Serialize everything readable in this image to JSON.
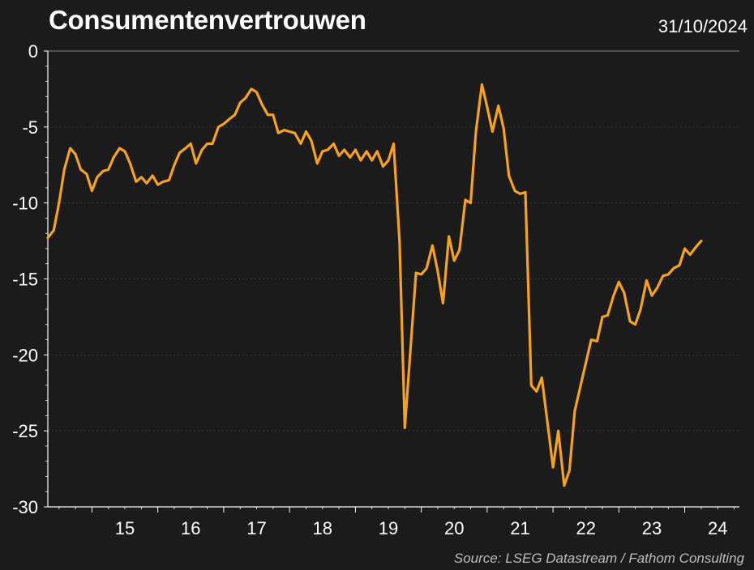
{
  "header": {
    "title": "Consumentenvertrouwen",
    "date": "31/10/2024"
  },
  "footer": {
    "source": "Source: LSEG Datastream / Fathom Consulting"
  },
  "colors": {
    "background": "#1b1b1b",
    "line": "#f7a21c",
    "text": "#ffffff",
    "gridline": "#3a3a3a"
  },
  "chart_data": {
    "type": "line",
    "title": "Consumentenvertrouwen",
    "xlabel": "",
    "ylabel": "",
    "ylim": [
      -30,
      0
    ],
    "xlim": [
      2014.33,
      2024.83
    ],
    "grid": true,
    "legend": "none",
    "yticks": [
      0,
      -5,
      -10,
      -15,
      -20,
      -25,
      -30
    ],
    "xtick_labels": [
      "15",
      "16",
      "17",
      "18",
      "19",
      "20",
      "21",
      "22",
      "23",
      "24"
    ],
    "xtick_values": [
      2015.5,
      2016.5,
      2017.5,
      2018.5,
      2019.5,
      2020.5,
      2021.5,
      2022.5,
      2023.5,
      2024.5
    ],
    "series": [
      {
        "values": [
          [
            2014.33,
            -12.3
          ],
          [
            2014.42,
            -11.8
          ],
          [
            2014.5,
            -10.0
          ],
          [
            2014.58,
            -7.8
          ],
          [
            2014.67,
            -6.4
          ],
          [
            2014.75,
            -6.8
          ],
          [
            2014.83,
            -7.8
          ],
          [
            2014.92,
            -8.1
          ],
          [
            2015.0,
            -9.2
          ],
          [
            2015.08,
            -8.3
          ],
          [
            2015.17,
            -7.9
          ],
          [
            2015.25,
            -7.8
          ],
          [
            2015.33,
            -7.0
          ],
          [
            2015.42,
            -6.4
          ],
          [
            2015.5,
            -6.6
          ],
          [
            2015.58,
            -7.4
          ],
          [
            2015.67,
            -8.6
          ],
          [
            2015.75,
            -8.3
          ],
          [
            2015.83,
            -8.7
          ],
          [
            2015.92,
            -8.2
          ],
          [
            2016.0,
            -8.8
          ],
          [
            2016.08,
            -8.6
          ],
          [
            2016.17,
            -8.5
          ],
          [
            2016.25,
            -7.5
          ],
          [
            2016.33,
            -6.7
          ],
          [
            2016.42,
            -6.4
          ],
          [
            2016.5,
            -6.1
          ],
          [
            2016.58,
            -7.4
          ],
          [
            2016.67,
            -6.5
          ],
          [
            2016.75,
            -6.1
          ],
          [
            2016.83,
            -6.1
          ],
          [
            2016.92,
            -5.0
          ],
          [
            2017.0,
            -4.8
          ],
          [
            2017.08,
            -4.5
          ],
          [
            2017.17,
            -4.2
          ],
          [
            2017.25,
            -3.4
          ],
          [
            2017.33,
            -3.1
          ],
          [
            2017.42,
            -2.5
          ],
          [
            2017.5,
            -2.7
          ],
          [
            2017.58,
            -3.5
          ],
          [
            2017.67,
            -4.2
          ],
          [
            2017.75,
            -4.2
          ],
          [
            2017.83,
            -5.4
          ],
          [
            2017.92,
            -5.2
          ],
          [
            2018.0,
            -5.3
          ],
          [
            2018.08,
            -5.4
          ],
          [
            2018.17,
            -6.1
          ],
          [
            2018.25,
            -5.3
          ],
          [
            2018.33,
            -5.9
          ],
          [
            2018.42,
            -7.4
          ],
          [
            2018.5,
            -6.6
          ],
          [
            2018.58,
            -6.5
          ],
          [
            2018.67,
            -6.1
          ],
          [
            2018.75,
            -6.9
          ],
          [
            2018.83,
            -6.5
          ],
          [
            2018.92,
            -7.0
          ],
          [
            2019.0,
            -6.5
          ],
          [
            2019.08,
            -7.2
          ],
          [
            2019.17,
            -6.6
          ],
          [
            2019.25,
            -7.2
          ],
          [
            2019.33,
            -6.6
          ],
          [
            2019.42,
            -7.6
          ],
          [
            2019.5,
            -7.2
          ],
          [
            2019.58,
            -6.1
          ],
          [
            2019.67,
            -12.5
          ],
          [
            2019.75,
            -24.8
          ],
          [
            2019.83,
            -20.0
          ],
          [
            2019.92,
            -14.6
          ],
          [
            2020.0,
            -14.7
          ],
          [
            2020.08,
            -14.3
          ],
          [
            2020.17,
            -12.8
          ],
          [
            2020.25,
            -14.5
          ],
          [
            2020.33,
            -16.6
          ],
          [
            2020.42,
            -12.2
          ],
          [
            2020.5,
            -13.8
          ],
          [
            2020.58,
            -13.1
          ],
          [
            2020.67,
            -9.8
          ],
          [
            2020.75,
            -10.0
          ],
          [
            2020.83,
            -5.3
          ],
          [
            2020.92,
            -2.2
          ],
          [
            2021.0,
            -3.7
          ],
          [
            2021.08,
            -5.3
          ],
          [
            2021.17,
            -3.6
          ],
          [
            2021.25,
            -5.1
          ],
          [
            2021.33,
            -8.2
          ],
          [
            2021.42,
            -9.2
          ],
          [
            2021.5,
            -9.4
          ],
          [
            2021.58,
            -9.3
          ],
          [
            2021.67,
            -22.0
          ],
          [
            2021.75,
            -22.4
          ],
          [
            2021.83,
            -21.5
          ],
          [
            2021.92,
            -24.6
          ],
          [
            2022.0,
            -27.4
          ],
          [
            2022.08,
            -25.0
          ],
          [
            2022.17,
            -28.6
          ],
          [
            2022.25,
            -27.6
          ],
          [
            2022.33,
            -23.7
          ],
          [
            2022.42,
            -22.0
          ],
          [
            2022.5,
            -20.5
          ],
          [
            2022.58,
            -19.0
          ],
          [
            2022.67,
            -19.1
          ],
          [
            2022.75,
            -17.5
          ],
          [
            2022.83,
            -17.4
          ],
          [
            2022.92,
            -16.1
          ],
          [
            2023.0,
            -15.2
          ],
          [
            2023.08,
            -15.9
          ],
          [
            2023.17,
            -17.8
          ],
          [
            2023.25,
            -18.0
          ],
          [
            2023.33,
            -17.0
          ],
          [
            2023.42,
            -15.1
          ],
          [
            2023.5,
            -16.1
          ],
          [
            2023.58,
            -15.6
          ],
          [
            2023.67,
            -14.8
          ],
          [
            2023.75,
            -14.7
          ],
          [
            2023.83,
            -14.3
          ],
          [
            2023.92,
            -14.1
          ],
          [
            2024.0,
            -13.0
          ],
          [
            2024.08,
            -13.4
          ],
          [
            2024.17,
            -12.9
          ],
          [
            2024.25,
            -12.5
          ]
        ]
      }
    ]
  }
}
